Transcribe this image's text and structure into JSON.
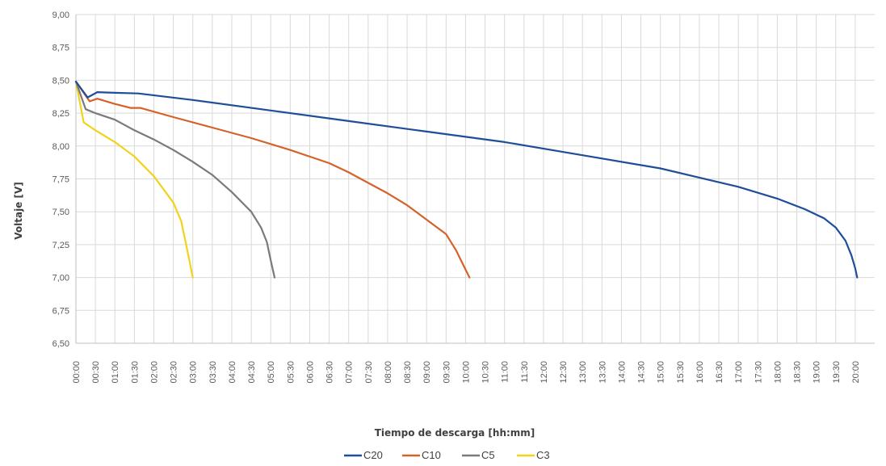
{
  "chart_data": {
    "type": "line",
    "xlabel": "Tiempo de descarga [hh:mm]",
    "ylabel": "Voltaje [V]",
    "ylim": [
      6.5,
      9.0
    ],
    "xlim_hours": [
      0,
      20.5
    ],
    "y_ticks": [
      "6,50",
      "6,75",
      "7,00",
      "7,25",
      "7,50",
      "7,75",
      "8,00",
      "8,25",
      "8,50",
      "8,75",
      "9,00"
    ],
    "x_ticks": [
      "00:00",
      "00:30",
      "01:00",
      "01:30",
      "02:00",
      "02:30",
      "03:00",
      "03:30",
      "04:00",
      "04:30",
      "05:00",
      "05:30",
      "06:00",
      "06:30",
      "07:00",
      "07:30",
      "08:00",
      "08:30",
      "09:00",
      "09:30",
      "10:00",
      "10:30",
      "11:00",
      "11:30",
      "12:00",
      "12:30",
      "13:00",
      "13:30",
      "14:00",
      "14:30",
      "15:00",
      "15:30",
      "16:00",
      "16:30",
      "17:00",
      "17:30",
      "18:00",
      "18:30",
      "19:00",
      "19:30",
      "20:00"
    ],
    "grid": true,
    "legend_position": "bottom",
    "series": [
      {
        "name": "C20",
        "color": "#1f4e99",
        "x": [
          0,
          0.3,
          0.55,
          1.0,
          1.6,
          3.0,
          5.0,
          7.0,
          9.0,
          11.0,
          13.0,
          15.0,
          16.0,
          17.0,
          18.0,
          18.7,
          19.2,
          19.5,
          19.75,
          19.9,
          20.0,
          20.05
        ],
        "y": [
          8.49,
          8.37,
          8.41,
          8.405,
          8.4,
          8.35,
          8.27,
          8.19,
          8.11,
          8.03,
          7.93,
          7.83,
          7.76,
          7.69,
          7.6,
          7.52,
          7.45,
          7.38,
          7.28,
          7.17,
          7.07,
          7.0
        ]
      },
      {
        "name": "C10",
        "color": "#d4622a",
        "x": [
          0,
          0.35,
          0.55,
          1.0,
          1.4,
          1.65,
          2.5,
          3.5,
          4.5,
          5.5,
          6.5,
          7.0,
          7.5,
          8.0,
          8.5,
          9.0,
          9.5,
          9.75,
          9.95,
          10.1
        ],
        "y": [
          8.49,
          8.34,
          8.36,
          8.32,
          8.29,
          8.29,
          8.22,
          8.14,
          8.06,
          7.97,
          7.87,
          7.8,
          7.72,
          7.64,
          7.55,
          7.44,
          7.33,
          7.21,
          7.09,
          7.0
        ]
      },
      {
        "name": "C5",
        "color": "#7a7a7a",
        "x": [
          0,
          0.25,
          0.5,
          1.0,
          1.5,
          2.0,
          2.5,
          3.0,
          3.5,
          4.0,
          4.5,
          4.75,
          4.9,
          5.0,
          5.1
        ],
        "y": [
          8.49,
          8.28,
          8.25,
          8.2,
          8.12,
          8.05,
          7.97,
          7.88,
          7.78,
          7.65,
          7.5,
          7.38,
          7.27,
          7.13,
          7.0
        ]
      },
      {
        "name": "C3",
        "color": "#f2d21b",
        "x": [
          0,
          0.2,
          0.5,
          1.0,
          1.5,
          2.0,
          2.5,
          2.7,
          2.85,
          3.0
        ],
        "y": [
          8.49,
          8.18,
          8.12,
          8.03,
          7.92,
          7.77,
          7.57,
          7.43,
          7.22,
          7.0
        ]
      }
    ]
  }
}
